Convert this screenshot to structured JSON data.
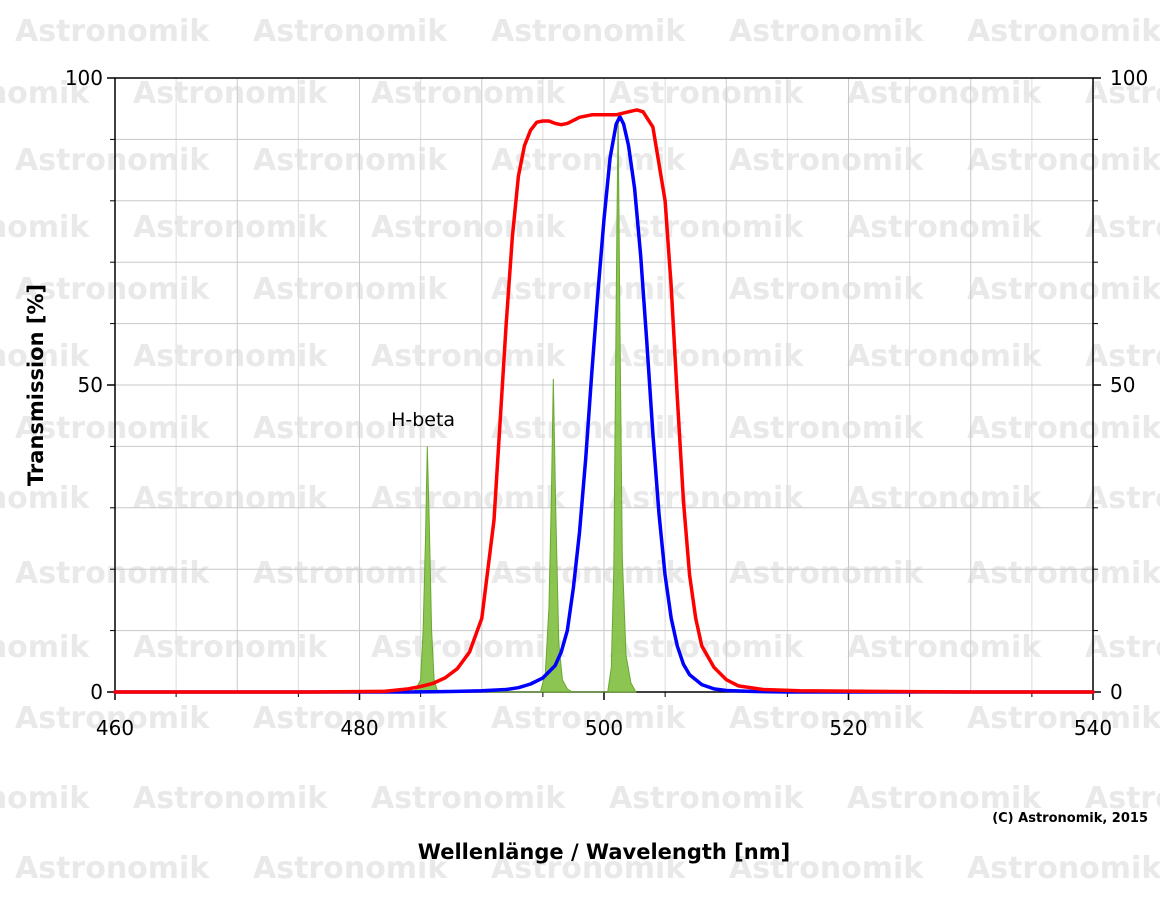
{
  "chart_data": {
    "type": "line",
    "xlabel": "Wellenlänge / Wavelength [nm]",
    "ylabel": "Transmission [%]",
    "xlim": [
      460,
      540
    ],
    "ylim": [
      0,
      100
    ],
    "x_ticks": [
      460,
      480,
      500,
      520,
      540
    ],
    "y_ticks": [
      0,
      50,
      100
    ],
    "grid": true,
    "copyright": "(C) Astronomik, 2015",
    "watermark": "Astronomik",
    "annotations": [
      {
        "text": "H-beta",
        "x": 485.2,
        "y": 42
      }
    ],
    "series": [
      {
        "color": "#ff0000",
        "points": [
          [
            460,
            0
          ],
          [
            476,
            0
          ],
          [
            482,
            0.1
          ],
          [
            484,
            0.5
          ],
          [
            485,
            0.9
          ],
          [
            486,
            1.4
          ],
          [
            487,
            2.3
          ],
          [
            488,
            3.8
          ],
          [
            489,
            6.5
          ],
          [
            490,
            12
          ],
          [
            491,
            28
          ],
          [
            492,
            60
          ],
          [
            492.5,
            74
          ],
          [
            493,
            84
          ],
          [
            493.5,
            89
          ],
          [
            494,
            91.5
          ],
          [
            494.5,
            92.8
          ],
          [
            495,
            93
          ],
          [
            495.5,
            93
          ],
          [
            496,
            92.6
          ],
          [
            496.5,
            92.4
          ],
          [
            497,
            92.6
          ],
          [
            497.5,
            93.1
          ],
          [
            498,
            93.6
          ],
          [
            499,
            94
          ],
          [
            500,
            94
          ],
          [
            501,
            94
          ],
          [
            502,
            94.5
          ],
          [
            502.7,
            94.8
          ],
          [
            503.2,
            94.5
          ],
          [
            504,
            92
          ],
          [
            505,
            80
          ],
          [
            505.5,
            66
          ],
          [
            506,
            48
          ],
          [
            506.5,
            31
          ],
          [
            507,
            19
          ],
          [
            507.5,
            12
          ],
          [
            508,
            7.5
          ],
          [
            509,
            4
          ],
          [
            510,
            2
          ],
          [
            511,
            1
          ],
          [
            513,
            0.4
          ],
          [
            516,
            0.2
          ],
          [
            522,
            0.1
          ],
          [
            530,
            0
          ],
          [
            540,
            0
          ]
        ]
      },
      {
        "color": "#0000ff",
        "points": [
          [
            460,
            0
          ],
          [
            484,
            0
          ],
          [
            486,
            0.05
          ],
          [
            488,
            0.1
          ],
          [
            490,
            0.2
          ],
          [
            492,
            0.4
          ],
          [
            493,
            0.7
          ],
          [
            494,
            1.3
          ],
          [
            495,
            2.3
          ],
          [
            496,
            4.3
          ],
          [
            496.5,
            6.5
          ],
          [
            497,
            10
          ],
          [
            497.5,
            17
          ],
          [
            498,
            26
          ],
          [
            498.5,
            38
          ],
          [
            499,
            52
          ],
          [
            499.5,
            65
          ],
          [
            500,
            77
          ],
          [
            500.5,
            87
          ],
          [
            501,
            92.5
          ],
          [
            501.3,
            93.7
          ],
          [
            501.6,
            92.5
          ],
          [
            502,
            89
          ],
          [
            502.5,
            82
          ],
          [
            503,
            71
          ],
          [
            503.5,
            57
          ],
          [
            504,
            42
          ],
          [
            504.5,
            29
          ],
          [
            505,
            19
          ],
          [
            505.5,
            12
          ],
          [
            506,
            7.5
          ],
          [
            506.5,
            4.5
          ],
          [
            507,
            2.8
          ],
          [
            508,
            1.2
          ],
          [
            509,
            0.5
          ],
          [
            510,
            0.25
          ],
          [
            512,
            0.1
          ],
          [
            515,
            0
          ],
          [
            540,
            0
          ]
        ]
      },
      {
        "color": "#7fbf3f",
        "fill": true,
        "points": [
          [
            484.5,
            0
          ],
          [
            485.0,
            2
          ],
          [
            485.2,
            10
          ],
          [
            485.4,
            25
          ],
          [
            485.55,
            40
          ],
          [
            485.7,
            28
          ],
          [
            485.9,
            10
          ],
          [
            486.1,
            2
          ],
          [
            486.4,
            0
          ],
          [
            494.8,
            0
          ],
          [
            495.2,
            3
          ],
          [
            495.5,
            14
          ],
          [
            495.7,
            32
          ],
          [
            495.85,
            51
          ],
          [
            496.05,
            30
          ],
          [
            496.3,
            8
          ],
          [
            496.6,
            2
          ],
          [
            497.0,
            0.5
          ],
          [
            497.4,
            0
          ],
          [
            500.3,
            0
          ],
          [
            500.6,
            4
          ],
          [
            500.8,
            20
          ],
          [
            500.95,
            52
          ],
          [
            501.05,
            74
          ],
          [
            501.15,
            94
          ],
          [
            501.3,
            60
          ],
          [
            501.5,
            22
          ],
          [
            501.8,
            6
          ],
          [
            502.2,
            1.5
          ],
          [
            502.6,
            0
          ]
        ]
      }
    ]
  }
}
